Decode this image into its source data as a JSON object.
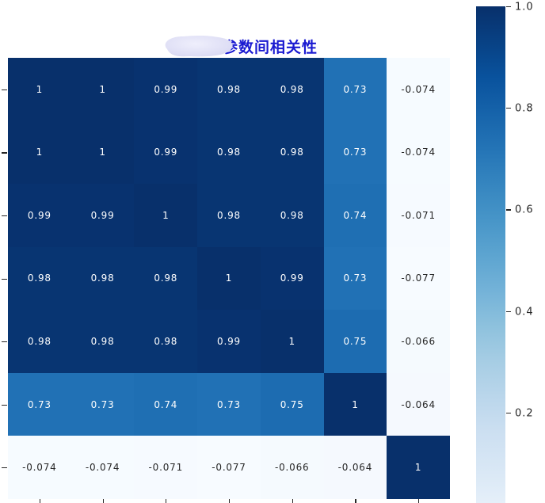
{
  "figure": {
    "title": "参数间相关性",
    "title_color": "#1a1ad1",
    "background_color": "#ffffff",
    "redaction_blob_color": "#d9d9f2",
    "tick_color": "#262626",
    "annotation_light_text": "#ffffff",
    "annotation_dark_text": "#262626"
  },
  "chart_data": {
    "type": "heatmap",
    "title": "参数间相关性",
    "rows": 7,
    "cols": 7,
    "matrix": [
      [
        1,
        1,
        0.99,
        0.98,
        0.98,
        0.73,
        -0.074
      ],
      [
        1,
        1,
        0.99,
        0.98,
        0.98,
        0.73,
        -0.074
      ],
      [
        0.99,
        0.99,
        1,
        0.98,
        0.98,
        0.74,
        -0.071
      ],
      [
        0.98,
        0.98,
        0.98,
        1,
        0.99,
        0.73,
        -0.077
      ],
      [
        0.98,
        0.98,
        0.98,
        0.99,
        1,
        0.75,
        -0.066
      ],
      [
        0.73,
        0.73,
        0.74,
        0.73,
        0.75,
        1,
        -0.064
      ],
      [
        -0.074,
        -0.074,
        -0.071,
        -0.077,
        -0.066,
        -0.064,
        1
      ]
    ],
    "cell_labels": [
      [
        "1",
        "1",
        "0.99",
        "0.98",
        "0.98",
        "0.73",
        "-0.074"
      ],
      [
        "1",
        "1",
        "0.99",
        "0.98",
        "0.98",
        "0.73",
        "-0.074"
      ],
      [
        "0.99",
        "0.99",
        "1",
        "0.98",
        "0.98",
        "0.74",
        "-0.071"
      ],
      [
        "0.98",
        "0.98",
        "0.98",
        "1",
        "0.99",
        "0.73",
        "-0.077"
      ],
      [
        "0.98",
        "0.98",
        "0.98",
        "0.99",
        "1",
        "0.75",
        "-0.066"
      ],
      [
        "0.73",
        "0.73",
        "0.74",
        "0.73",
        "0.75",
        "1",
        "-0.064"
      ],
      [
        "-0.074",
        "-0.074",
        "-0.071",
        "-0.077",
        "-0.066",
        "-0.064",
        "1"
      ]
    ],
    "x_ticklabels": [],
    "y_ticklabels": [],
    "ticklabels_note": "axis tick labels cropped out of image; only tick marks visible",
    "colormap": "Blues",
    "vmin": -0.077,
    "vmax": 1.0,
    "grid": false,
    "legend_position": "right",
    "colorbar": {
      "tick_labels": [
        "1.0",
        "0.8",
        "0.6",
        "0.4",
        "0.2"
      ],
      "tick_values": [
        1.0,
        0.8,
        0.6,
        0.4,
        0.2
      ],
      "value_at_top": 1.0,
      "value_at_bottom_cutoff": 0.0216,
      "top_color": "#08306b",
      "bottom_visible_color": "#e5eff9"
    }
  }
}
